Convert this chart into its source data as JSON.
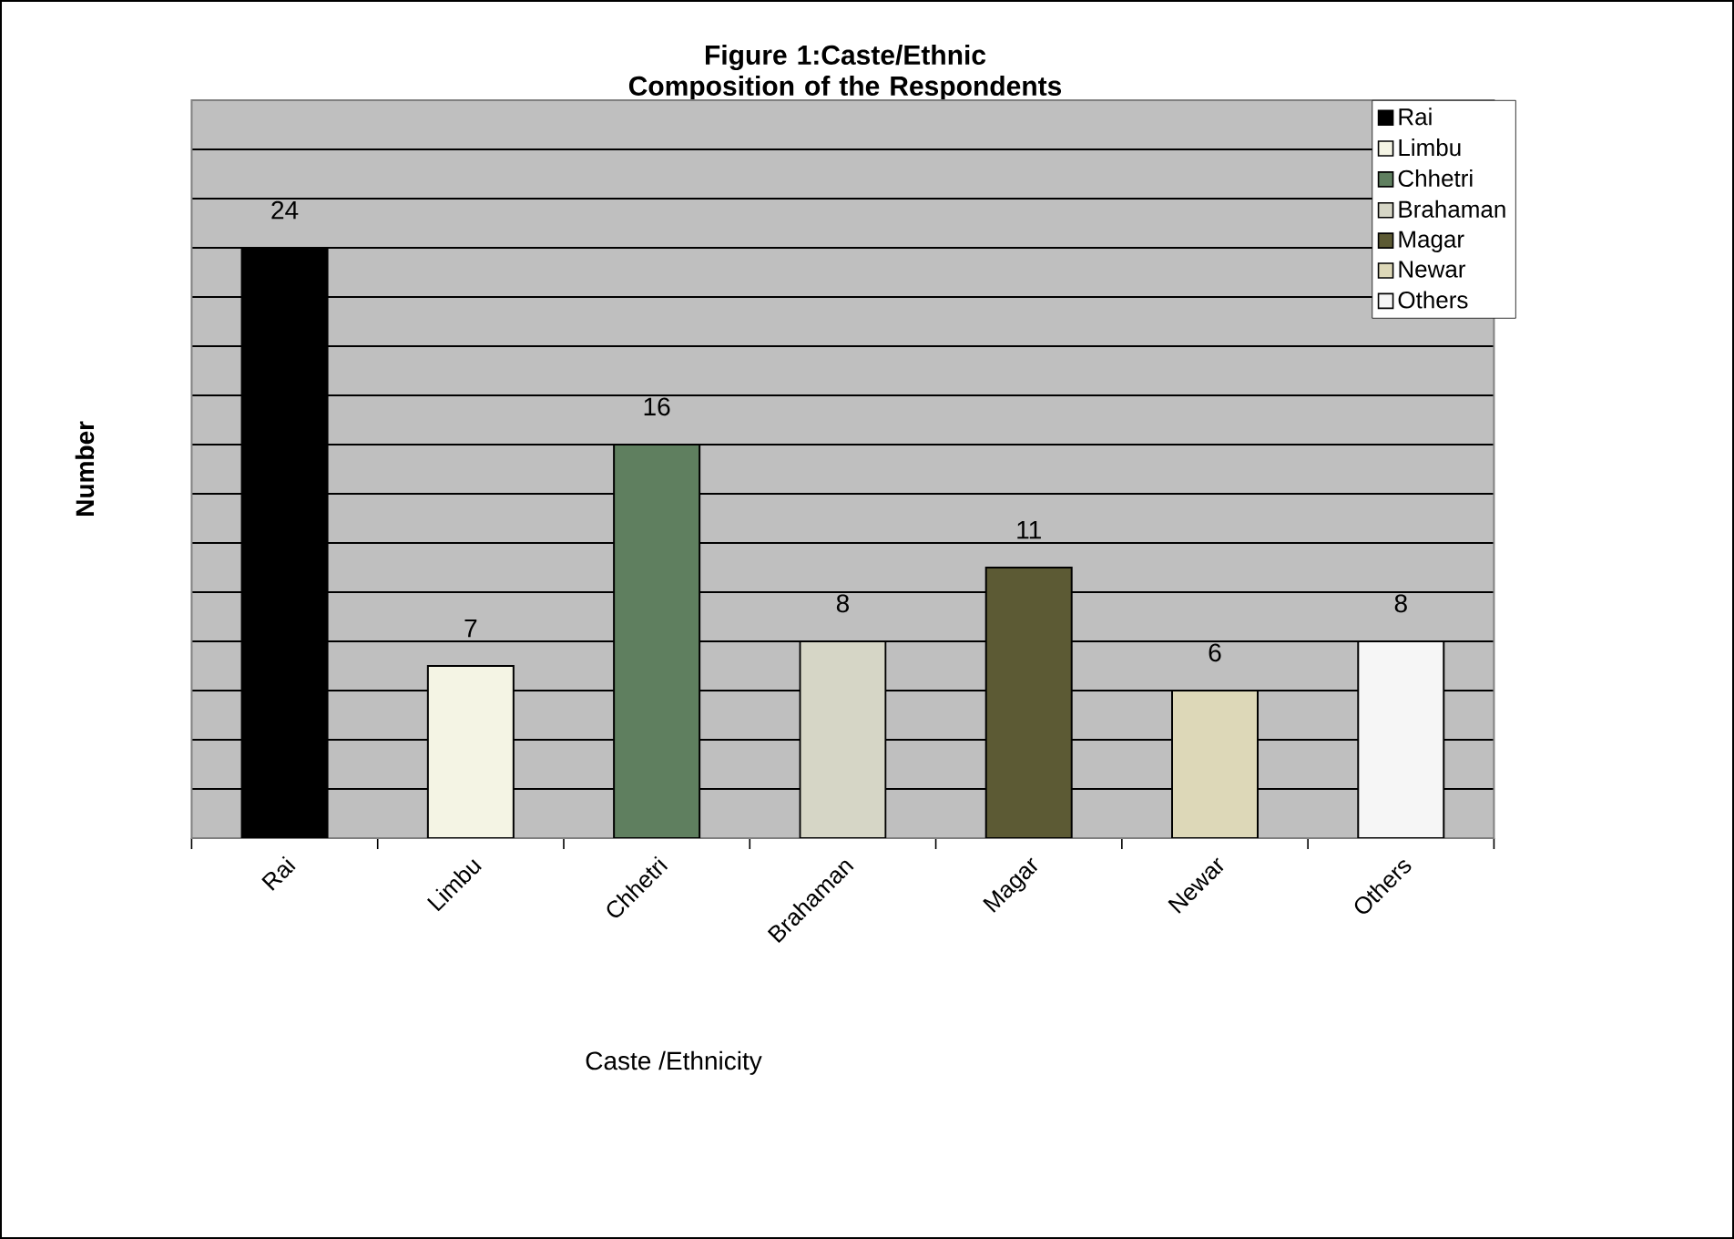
{
  "chart_data": {
    "type": "bar",
    "title": "Figure 1:Caste/Ethnic Composition of the Respondents",
    "xlabel": "Caste /Ethnicity",
    "ylabel": "Number",
    "categories": [
      "Rai",
      "Limbu",
      "Chhetri",
      "Brahaman",
      "Magar",
      "Newar",
      "Others"
    ],
    "series": [
      {
        "name": "Rai",
        "color": "#000000",
        "values": [
          24,
          null,
          null,
          null,
          null,
          null,
          null
        ]
      },
      {
        "name": "Limbu",
        "color": "#f4f4e4",
        "values": [
          null,
          7,
          null,
          null,
          null,
          null,
          null
        ]
      },
      {
        "name": "Chhetri",
        "color": "#5f7f5f",
        "values": [
          null,
          null,
          16,
          null,
          null,
          null,
          null
        ]
      },
      {
        "name": "Brahaman",
        "color": "#d6d6c6",
        "values": [
          null,
          null,
          null,
          8,
          null,
          null,
          null
        ]
      },
      {
        "name": "Magar",
        "color": "#5c5a34",
        "values": [
          null,
          null,
          null,
          null,
          11,
          null,
          null
        ]
      },
      {
        "name": "Newar",
        "color": "#ddd8b8",
        "values": [
          null,
          null,
          null,
          null,
          null,
          6,
          null
        ]
      },
      {
        "name": "Others",
        "color": "#f6f6f6",
        "values": [
          null,
          null,
          null,
          null,
          null,
          null,
          8
        ]
      }
    ],
    "ylim": [
      0,
      30
    ],
    "tick_labels": "x",
    "grid": "y",
    "legend": "top right",
    "data_labels": true
  }
}
